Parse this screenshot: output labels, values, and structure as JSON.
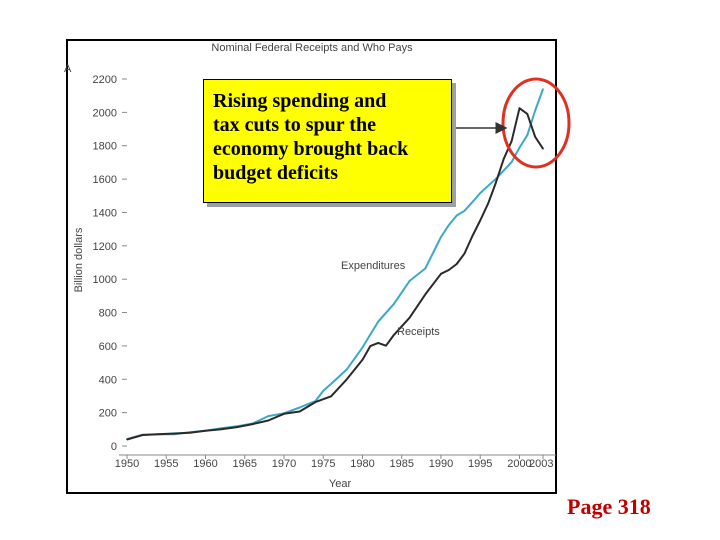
{
  "chart_data": {
    "type": "line",
    "title": "Nominal Federal Receipts and Who Pays",
    "panel_label": "A",
    "xlabel": "Year",
    "ylabel": "Billion dollars",
    "xlim": [
      1950,
      2003
    ],
    "ylim": [
      0,
      2200
    ],
    "x_ticks": [
      "1950",
      "1955",
      "1960",
      "1965",
      "1970",
      "1975",
      "1980",
      "1985",
      "1990",
      "1995",
      "2000",
      "2003"
    ],
    "y_ticks": [
      "0",
      "200",
      "400",
      "600",
      "800",
      "1000",
      "1200",
      "1400",
      "1600",
      "1800",
      "2000",
      "2200"
    ],
    "grid": false,
    "legend": "inline labels",
    "series": [
      {
        "name": "Expenditures",
        "color": "#3ba8c8",
        "x": [
          1950,
          1952,
          1954,
          1956,
          1958,
          1960,
          1962,
          1964,
          1966,
          1968,
          1970,
          1972,
          1974,
          1975,
          1976,
          1978,
          1980,
          1982,
          1984,
          1986,
          1988,
          1990,
          1991,
          1992,
          1993,
          1994,
          1995,
          1996,
          1997,
          1998,
          1999,
          2000,
          2001,
          2002,
          2003
        ],
        "y": [
          42,
          68,
          71,
          70,
          82,
          92,
          107,
          118,
          135,
          179,
          196,
          231,
          269,
          330,
          372,
          459,
          591,
          746,
          852,
          990,
          1064,
          1253,
          1324,
          1382,
          1410,
          1462,
          1516,
          1560,
          1601,
          1652,
          1702,
          1789,
          1863,
          2011,
          2140
        ]
      },
      {
        "name": "Receipts",
        "color": "#2a2a2a",
        "x": [
          1950,
          1952,
          1954,
          1956,
          1958,
          1960,
          1962,
          1964,
          1966,
          1968,
          1970,
          1972,
          1974,
          1976,
          1978,
          1980,
          1981,
          1982,
          1983,
          1984,
          1986,
          1988,
          1990,
          1991,
          1992,
          1993,
          1994,
          1995,
          1996,
          1997,
          1998,
          1999,
          2000,
          2001,
          2002,
          2003
        ],
        "y": [
          39,
          66,
          70,
          75,
          80,
          92,
          100,
          113,
          131,
          153,
          193,
          207,
          263,
          298,
          400,
          517,
          599,
          618,
          601,
          666,
          769,
          909,
          1032,
          1055,
          1091,
          1154,
          1259,
          1352,
          1453,
          1579,
          1722,
          1827,
          2025,
          1991,
          1853,
          1782
        ]
      }
    ],
    "annotation": "Rising spending and tax cuts to spur the economy brought back budget deficits"
  },
  "callout": {
    "lines": [
      "Rising spending and",
      "tax cuts to spur the",
      "economy brought back",
      "budget deficits"
    ]
  },
  "page_label": "Page 318",
  "colors": {
    "highlight_circle": "#e03020",
    "callout_bg": "#ffff00",
    "page_label": "#c00000"
  }
}
